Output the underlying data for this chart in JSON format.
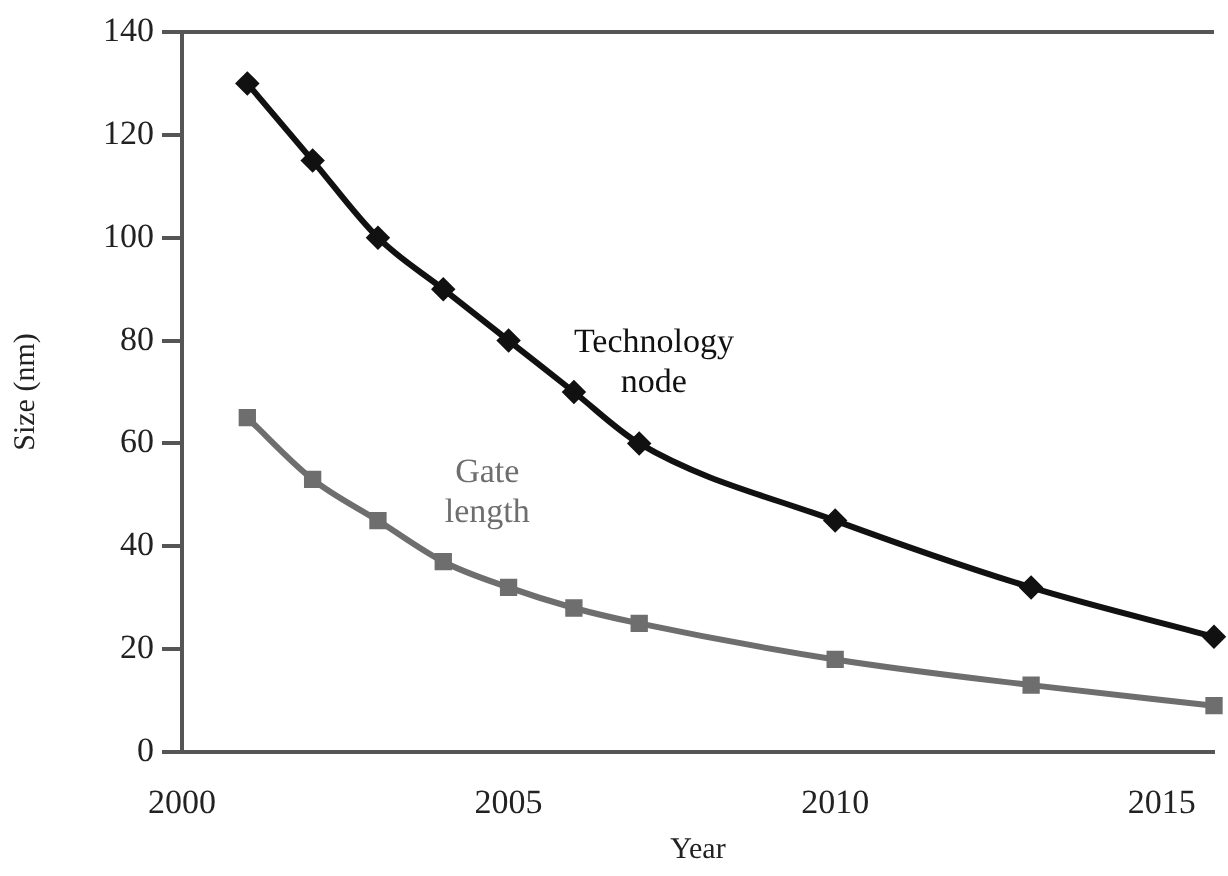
{
  "chart_data": {
    "type": "line",
    "xlabel": "Year",
    "ylabel": "Size (nm)",
    "xlim": [
      2000,
      2015.8
    ],
    "xticks": [
      2000,
      2005,
      2010,
      2015
    ],
    "ylim": [
      0,
      140
    ],
    "yticks": [
      0,
      20,
      40,
      60,
      80,
      100,
      120,
      140
    ],
    "grid": false,
    "legend": false,
    "series": [
      {
        "name": "Technology node",
        "color": "#111111",
        "marker": "diamond",
        "x": [
          2001,
          2002,
          2003,
          2004,
          2005,
          2006,
          2007,
          2010,
          2013,
          2015.8
        ],
        "values": [
          130,
          115,
          100,
          90,
          80,
          70,
          60,
          45,
          32,
          22.4
        ]
      },
      {
        "name": "Gate length",
        "color": "#6e6e6e",
        "marker": "square",
        "x": [
          2001,
          2002,
          2003,
          2004,
          2005,
          2006,
          2007,
          2010,
          2013,
          2015.8
        ],
        "values": [
          65,
          53,
          45,
          37,
          32,
          28,
          25,
          18,
          13,
          9
        ]
      }
    ]
  }
}
